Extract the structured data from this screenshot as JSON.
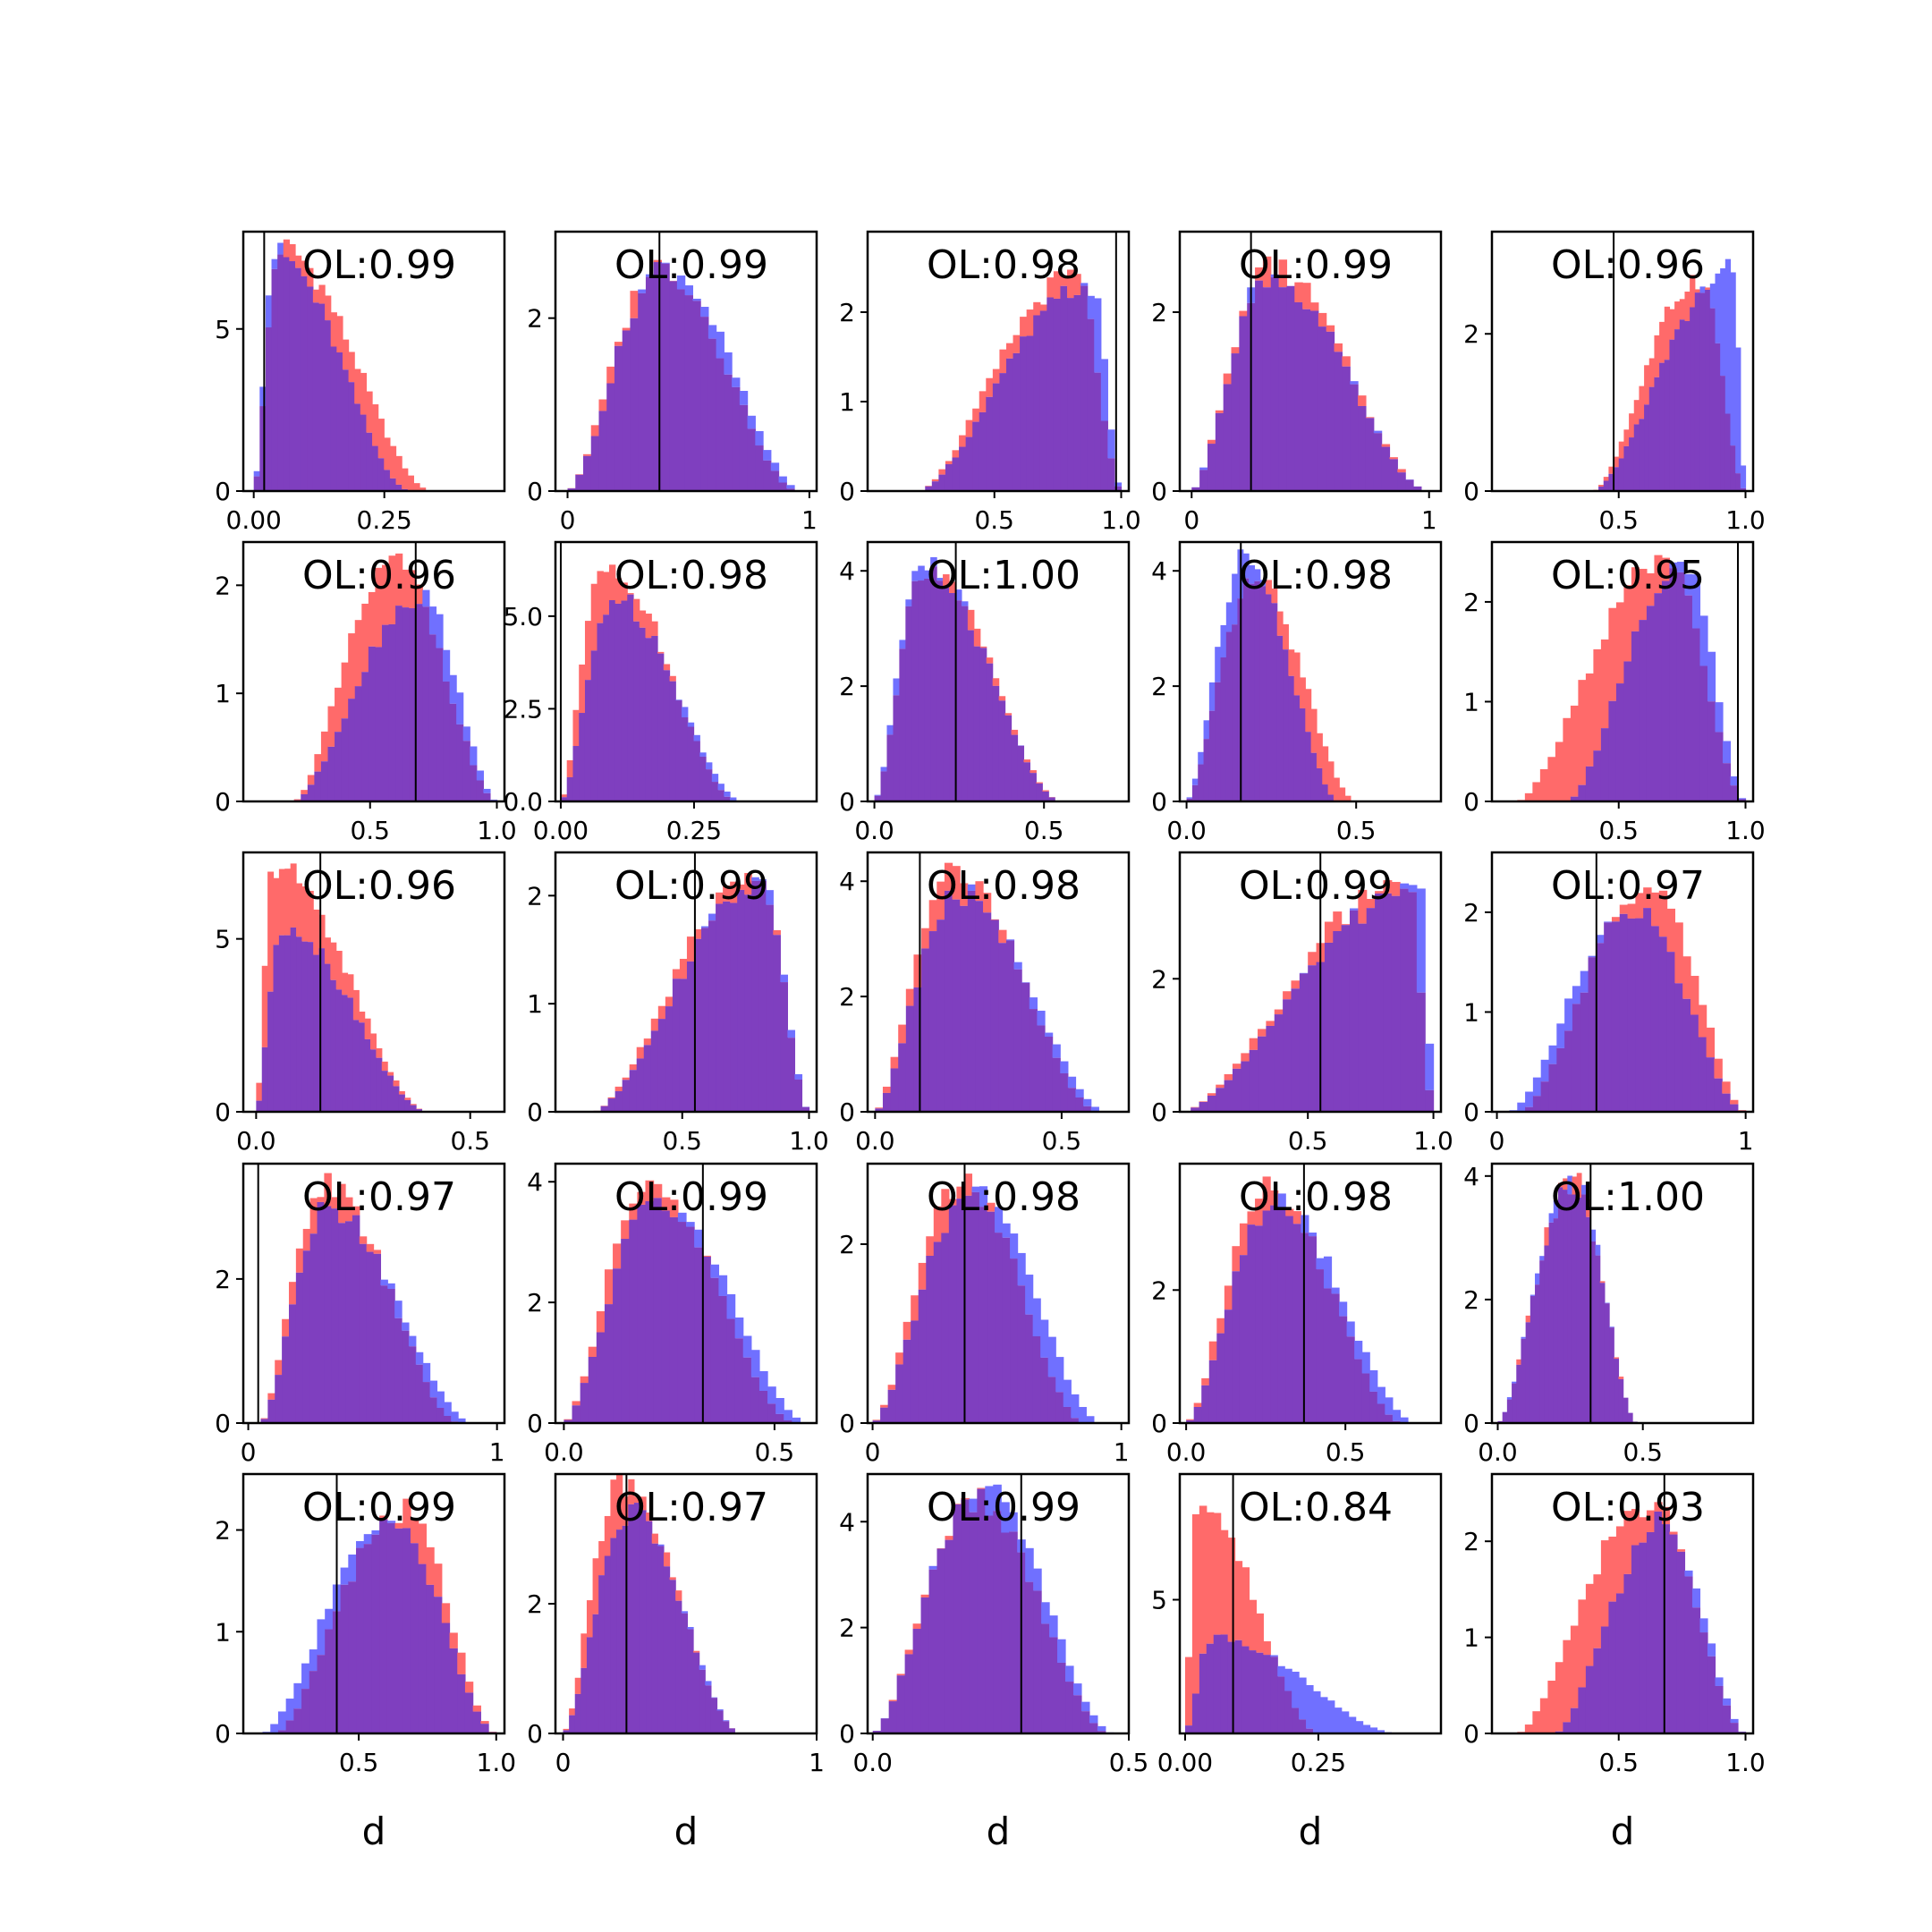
{
  "chart_data": [
    {
      "type": "bar",
      "ol": "OL:0.99",
      "xlim": [
        -0.02,
        0.48
      ],
      "ylim": [
        0,
        8
      ],
      "xticks": [
        0.0,
        0.25
      ],
      "xtick_labels": [
        "0.00",
        "0.25"
      ],
      "yticks": [
        0,
        5
      ],
      "ytick_labels": [
        "0",
        "5"
      ],
      "vline": 0.02,
      "xlabel": "",
      "series": [
        {
          "name": "red",
          "kind": "skew",
          "lo": 0.0,
          "hi": 0.34,
          "mode": 0.05,
          "peak": 7.5
        },
        {
          "name": "blue",
          "kind": "skew",
          "lo": 0.0,
          "hi": 0.3,
          "mode": 0.04,
          "peak": 7.3
        }
      ]
    },
    {
      "type": "bar",
      "ol": "OL:0.99",
      "xlim": [
        -0.05,
        1.03
      ],
      "ylim": [
        0,
        3.0
      ],
      "xticks": [
        0,
        1
      ],
      "xtick_labels": [
        "0",
        "1"
      ],
      "yticks": [
        0,
        2
      ],
      "ytick_labels": [
        "0",
        "2"
      ],
      "vline": 0.38,
      "xlabel": "",
      "series": [
        {
          "name": "red",
          "kind": "skew",
          "lo": 0.0,
          "hi": 0.95,
          "mode": 0.38,
          "peak": 2.6
        },
        {
          "name": "blue",
          "kind": "skew",
          "lo": 0.0,
          "hi": 0.97,
          "mode": 0.4,
          "peak": 2.6
        }
      ]
    },
    {
      "type": "bar",
      "ol": "OL:0.98",
      "xlim": [
        0.0,
        1.03
      ],
      "ylim": [
        0,
        2.9
      ],
      "xticks": [
        0.5,
        1.0
      ],
      "xtick_labels": [
        "0.5",
        "1.0"
      ],
      "yticks": [
        0,
        1,
        2
      ],
      "ytick_labels": [
        "0",
        "1",
        "2"
      ],
      "vline": 0.98,
      "xlabel": "",
      "series": [
        {
          "name": "red",
          "kind": "skew",
          "lo": 0.2,
          "hi": 1.0,
          "mode": 0.82,
          "peak": 2.4
        },
        {
          "name": "blue",
          "kind": "skew",
          "lo": 0.2,
          "hi": 1.0,
          "mode": 0.88,
          "peak": 2.3
        }
      ]
    },
    {
      "type": "bar",
      "ol": "OL:0.99",
      "xlim": [
        -0.05,
        1.05
      ],
      "ylim": [
        0,
        2.9
      ],
      "xticks": [
        0,
        1
      ],
      "xtick_labels": [
        "0",
        "1"
      ],
      "yticks": [
        0,
        2
      ],
      "ytick_labels": [
        "0",
        "2"
      ],
      "vline": 0.25,
      "xlabel": "",
      "series": [
        {
          "name": "red",
          "kind": "skew",
          "lo": 0.0,
          "hi": 1.0,
          "mode": 0.33,
          "peak": 2.5
        },
        {
          "name": "blue",
          "kind": "skew",
          "lo": 0.0,
          "hi": 1.0,
          "mode": 0.32,
          "peak": 2.4
        }
      ]
    },
    {
      "type": "bar",
      "ol": "OL:0.96",
      "xlim": [
        0.0,
        1.03
      ],
      "ylim": [
        0,
        3.3
      ],
      "xticks": [
        0.5,
        1.0
      ],
      "xtick_labels": [
        "0.5",
        "1.0"
      ],
      "yticks": [
        0,
        2
      ],
      "ytick_labels": [
        "0",
        "2"
      ],
      "vline": 0.48,
      "xlabel": "",
      "series": [
        {
          "name": "red",
          "kind": "skew",
          "lo": 0.4,
          "hi": 1.0,
          "mode": 0.82,
          "peak": 2.7
        },
        {
          "name": "blue",
          "kind": "skew",
          "lo": 0.4,
          "hi": 1.0,
          "mode": 0.95,
          "peak": 2.8
        }
      ]
    },
    {
      "type": "bar",
      "ol": "OL:0.96",
      "xlim": [
        0.0,
        1.03
      ],
      "ylim": [
        0,
        2.4
      ],
      "xticks": [
        0.5,
        1.0
      ],
      "xtick_labels": [
        "0.5",
        "1.0"
      ],
      "yticks": [
        0,
        1,
        2
      ],
      "ytick_labels": [
        "0",
        "1",
        "2"
      ],
      "vline": 0.68,
      "xlabel": "",
      "series": [
        {
          "name": "red",
          "kind": "skew",
          "lo": 0.2,
          "hi": 1.0,
          "mode": 0.6,
          "peak": 2.2
        },
        {
          "name": "blue",
          "kind": "skew",
          "lo": 0.2,
          "hi": 1.0,
          "mode": 0.7,
          "peak": 1.9
        }
      ]
    },
    {
      "type": "bar",
      "ol": "OL:0.98",
      "xlim": [
        -0.01,
        0.48
      ],
      "ylim": [
        0,
        7.0
      ],
      "xticks": [
        0.0,
        0.25
      ],
      "xtick_labels": [
        "0.00",
        "0.25"
      ],
      "yticks": [
        0,
        2.5,
        5.0
      ],
      "ytick_labels": [
        "0.0",
        "2.5",
        "5.0"
      ],
      "vline": 0.0,
      "xlabel": "",
      "series": [
        {
          "name": "red",
          "kind": "skew",
          "lo": 0.0,
          "hi": 0.33,
          "mode": 0.08,
          "peak": 6.5
        },
        {
          "name": "blue",
          "kind": "skew",
          "lo": 0.0,
          "hi": 0.34,
          "mode": 0.1,
          "peak": 5.5
        }
      ]
    },
    {
      "type": "bar",
      "ol": "OL:1.00",
      "xlim": [
        -0.02,
        0.75
      ],
      "ylim": [
        0,
        4.5
      ],
      "xticks": [
        0.0,
        0.5
      ],
      "xtick_labels": [
        "0.0",
        "0.5"
      ],
      "yticks": [
        0,
        2,
        4
      ],
      "ytick_labels": [
        "0",
        "2",
        "4"
      ],
      "vline": 0.24,
      "xlabel": "",
      "series": [
        {
          "name": "red",
          "kind": "skew",
          "lo": 0.0,
          "hi": 0.55,
          "mode": 0.15,
          "peak": 4.1
        },
        {
          "name": "blue",
          "kind": "skew",
          "lo": 0.0,
          "hi": 0.55,
          "mode": 0.14,
          "peak": 4.1
        }
      ]
    },
    {
      "type": "bar",
      "ol": "OL:0.98",
      "xlim": [
        -0.02,
        0.75
      ],
      "ylim": [
        0,
        4.5
      ],
      "xticks": [
        0.0,
        0.5
      ],
      "xtick_labels": [
        "0.0",
        "0.5"
      ],
      "yticks": [
        0,
        2,
        4
      ],
      "ytick_labels": [
        "0",
        "2",
        "4"
      ],
      "vline": 0.16,
      "xlabel": "",
      "series": [
        {
          "name": "red",
          "kind": "skew",
          "lo": 0.0,
          "hi": 0.5,
          "mode": 0.2,
          "peak": 3.8
        },
        {
          "name": "blue",
          "kind": "skew",
          "lo": 0.0,
          "hi": 0.45,
          "mode": 0.17,
          "peak": 4.2
        }
      ]
    },
    {
      "type": "bar",
      "ol": "OL:0.95",
      "xlim": [
        0.0,
        1.03
      ],
      "ylim": [
        0,
        2.6
      ],
      "xticks": [
        0.5,
        1.0
      ],
      "xtick_labels": [
        "0.5",
        "1.0"
      ],
      "yticks": [
        0,
        1,
        2
      ],
      "ytick_labels": [
        "0",
        "1",
        "2"
      ],
      "vline": 0.97,
      "xlabel": "",
      "series": [
        {
          "name": "red",
          "kind": "skew",
          "lo": 0.1,
          "hi": 1.0,
          "mode": 0.68,
          "peak": 2.4
        },
        {
          "name": "blue",
          "kind": "skew",
          "lo": 0.3,
          "hi": 1.0,
          "mode": 0.75,
          "peak": 2.4
        }
      ]
    },
    {
      "type": "bar",
      "ol": "OL:0.96",
      "xlim": [
        -0.03,
        0.58
      ],
      "ylim": [
        0,
        7.5
      ],
      "xticks": [
        0.0,
        0.5
      ],
      "xtick_labels": [
        "0.0",
        "0.5"
      ],
      "yticks": [
        0,
        5
      ],
      "ytick_labels": [
        "0",
        "5"
      ],
      "vline": 0.15,
      "xlabel": "",
      "series": [
        {
          "name": "red",
          "kind": "skew",
          "lo": 0.0,
          "hi": 0.4,
          "mode": 0.04,
          "peak": 7.1
        },
        {
          "name": "blue",
          "kind": "skew",
          "lo": 0.0,
          "hi": 0.4,
          "mode": 0.06,
          "peak": 5.4
        }
      ]
    },
    {
      "type": "bar",
      "ol": "OL:0.99",
      "xlim": [
        0.0,
        1.03
      ],
      "ylim": [
        0,
        2.4
      ],
      "xticks": [
        0.5,
        1.0
      ],
      "xtick_labels": [
        "0.5",
        "1.0"
      ],
      "yticks": [
        0,
        1,
        2
      ],
      "ytick_labels": [
        "0",
        "1",
        "2"
      ],
      "vline": 0.55,
      "xlabel": "",
      "series": [
        {
          "name": "red",
          "kind": "skew",
          "lo": 0.15,
          "hi": 1.0,
          "mode": 0.8,
          "peak": 2.2
        },
        {
          "name": "blue",
          "kind": "skew",
          "lo": 0.15,
          "hi": 1.0,
          "mode": 0.82,
          "peak": 2.1
        }
      ]
    },
    {
      "type": "bar",
      "ol": "OL:0.98",
      "xlim": [
        -0.02,
        0.68
      ],
      "ylim": [
        0,
        4.5
      ],
      "xticks": [
        0.0,
        0.5
      ],
      "xtick_labels": [
        "0.0",
        "0.5"
      ],
      "yticks": [
        0,
        2,
        4
      ],
      "ytick_labels": [
        "0",
        "2",
        "4"
      ],
      "vline": 0.12,
      "xlabel": "",
      "series": [
        {
          "name": "red",
          "kind": "skew",
          "lo": 0.0,
          "hi": 0.6,
          "mode": 0.2,
          "peak": 4.2
        },
        {
          "name": "blue",
          "kind": "skew",
          "lo": 0.0,
          "hi": 0.62,
          "mode": 0.22,
          "peak": 3.8
        }
      ]
    },
    {
      "type": "bar",
      "ol": "OL:0.99",
      "xlim": [
        -0.01,
        1.03
      ],
      "ylim": [
        0,
        3.9
      ],
      "xticks": [
        0.5,
        1.0
      ],
      "xtick_labels": [
        "0.5",
        "1.0"
      ],
      "yticks": [
        0,
        2
      ],
      "ytick_labels": [
        "0",
        "2"
      ],
      "vline": 0.55,
      "xlabel": "",
      "series": [
        {
          "name": "red",
          "kind": "skew",
          "lo": 0.0,
          "hi": 1.0,
          "mode": 0.9,
          "peak": 3.5
        },
        {
          "name": "blue",
          "kind": "skew",
          "lo": 0.0,
          "hi": 1.0,
          "mode": 0.95,
          "peak": 3.4
        }
      ]
    },
    {
      "type": "bar",
      "ol": "OL:0.97",
      "xlim": [
        -0.02,
        1.03
      ],
      "ylim": [
        0,
        2.6
      ],
      "xticks": [
        0,
        1
      ],
      "xtick_labels": [
        "0",
        "1"
      ],
      "yticks": [
        0,
        1,
        2
      ],
      "ytick_labels": [
        "0",
        "1",
        "2"
      ],
      "vline": 0.4,
      "xlabel": "",
      "series": [
        {
          "name": "red",
          "kind": "skew",
          "lo": 0.1,
          "hi": 1.0,
          "mode": 0.62,
          "peak": 2.3
        },
        {
          "name": "blue",
          "kind": "skew",
          "lo": 0.05,
          "hi": 1.0,
          "mode": 0.55,
          "peak": 2.0
        }
      ]
    },
    {
      "type": "bar",
      "ol": "OL:0.97",
      "xlim": [
        -0.02,
        1.03
      ],
      "ylim": [
        0,
        3.6
      ],
      "xticks": [
        0,
        1
      ],
      "xtick_labels": [
        "0",
        "1"
      ],
      "yticks": [
        0,
        2
      ],
      "ytick_labels": [
        "0",
        "2"
      ],
      "vline": 0.04,
      "xlabel": "",
      "series": [
        {
          "name": "red",
          "kind": "skew",
          "lo": 0.05,
          "hi": 0.85,
          "mode": 0.3,
          "peak": 3.3
        },
        {
          "name": "blue",
          "kind": "skew",
          "lo": 0.05,
          "hi": 0.9,
          "mode": 0.32,
          "peak": 3.0
        }
      ]
    },
    {
      "type": "bar",
      "ol": "OL:0.99",
      "xlim": [
        -0.02,
        0.6
      ],
      "ylim": [
        0,
        4.3
      ],
      "xticks": [
        0.0,
        0.5
      ],
      "xtick_labels": [
        "0.0",
        "0.5"
      ],
      "yticks": [
        0,
        2,
        4
      ],
      "ytick_labels": [
        "0",
        "2",
        "4"
      ],
      "vline": 0.33,
      "xlabel": "",
      "series": [
        {
          "name": "red",
          "kind": "skew",
          "lo": 0.0,
          "hi": 0.55,
          "mode": 0.2,
          "peak": 3.9
        },
        {
          "name": "blue",
          "kind": "skew",
          "lo": 0.0,
          "hi": 0.58,
          "mode": 0.22,
          "peak": 3.7
        }
      ]
    },
    {
      "type": "bar",
      "ol": "OL:0.98",
      "xlim": [
        -0.02,
        1.03
      ],
      "ylim": [
        0,
        2.9
      ],
      "xticks": [
        0,
        1
      ],
      "xtick_labels": [
        "0",
        "1"
      ],
      "yticks": [
        0,
        2
      ],
      "ytick_labels": [
        "0",
        "2"
      ],
      "vline": 0.37,
      "xlabel": "",
      "series": [
        {
          "name": "red",
          "kind": "skew",
          "lo": 0.0,
          "hi": 0.85,
          "mode": 0.36,
          "peak": 2.7
        },
        {
          "name": "blue",
          "kind": "skew",
          "lo": 0.0,
          "hi": 0.92,
          "mode": 0.4,
          "peak": 2.6
        }
      ]
    },
    {
      "type": "bar",
      "ol": "OL:0.98",
      "xlim": [
        -0.02,
        0.8
      ],
      "ylim": [
        0,
        3.9
      ],
      "xticks": [
        0.0,
        0.5
      ],
      "xtick_labels": [
        "0.0",
        "0.5"
      ],
      "yticks": [
        0,
        2
      ],
      "ytick_labels": [
        "0",
        "2"
      ],
      "vline": 0.37,
      "xlabel": "",
      "series": [
        {
          "name": "red",
          "kind": "skew",
          "lo": 0.0,
          "hi": 0.68,
          "mode": 0.25,
          "peak": 3.5
        },
        {
          "name": "blue",
          "kind": "skew",
          "lo": 0.0,
          "hi": 0.72,
          "mode": 0.28,
          "peak": 3.3
        }
      ]
    },
    {
      "type": "bar",
      "ol": "OL:1.00",
      "xlim": [
        -0.02,
        0.88
      ],
      "ylim": [
        0,
        4.2
      ],
      "xticks": [
        0.0,
        0.5
      ],
      "xtick_labels": [
        "0.0",
        "0.5"
      ],
      "yticks": [
        0,
        2,
        4
      ],
      "ytick_labels": [
        "0",
        "2",
        "4"
      ],
      "vline": 0.32,
      "xlabel": "",
      "series": [
        {
          "name": "red",
          "kind": "skew",
          "lo": 0.0,
          "hi": 0.48,
          "mode": 0.26,
          "peak": 3.9
        },
        {
          "name": "blue",
          "kind": "skew",
          "lo": 0.0,
          "hi": 0.48,
          "mode": 0.26,
          "peak": 3.9
        }
      ]
    },
    {
      "type": "bar",
      "ol": "OL:0.99",
      "xlim": [
        0.08,
        1.03
      ],
      "ylim": [
        0,
        2.55
      ],
      "xticks": [
        0.5,
        1.0
      ],
      "xtick_labels": [
        "0.5",
        "1.0"
      ],
      "yticks": [
        0,
        1,
        2
      ],
      "ytick_labels": [
        "0",
        "1",
        "2"
      ],
      "vline": 0.42,
      "xlabel": "d",
      "series": [
        {
          "name": "red",
          "kind": "skew",
          "lo": 0.2,
          "hi": 1.0,
          "mode": 0.66,
          "peak": 2.2
        },
        {
          "name": "blue",
          "kind": "skew",
          "lo": 0.15,
          "hi": 1.0,
          "mode": 0.62,
          "peak": 2.1
        }
      ]
    },
    {
      "type": "bar",
      "ol": "OL:0.97",
      "xlim": [
        -0.03,
        1.0
      ],
      "ylim": [
        0,
        4.0
      ],
      "xticks": [
        0,
        1
      ],
      "xtick_labels": [
        "0",
        "1"
      ],
      "yticks": [
        0,
        2
      ],
      "ytick_labels": [
        "0",
        "2"
      ],
      "vline": 0.25,
      "xlabel": "d",
      "series": [
        {
          "name": "red",
          "kind": "skew",
          "lo": 0.0,
          "hi": 0.7,
          "mode": 0.22,
          "peak": 3.8
        },
        {
          "name": "blue",
          "kind": "skew",
          "lo": 0.0,
          "hi": 0.7,
          "mode": 0.26,
          "peak": 3.4
        }
      ]
    },
    {
      "type": "bar",
      "ol": "OL:0.99",
      "xlim": [
        -0.01,
        0.5
      ],
      "ylim": [
        0,
        4.9
      ],
      "xticks": [
        0.0,
        0.5
      ],
      "xtick_labels": [
        "0.0",
        "0.5"
      ],
      "yticks": [
        0,
        2,
        4
      ],
      "ytick_labels": [
        "0",
        "2",
        "4"
      ],
      "vline": 0.29,
      "xlabel": "d",
      "series": [
        {
          "name": "red",
          "kind": "skew",
          "lo": 0.0,
          "hi": 0.46,
          "mode": 0.2,
          "peak": 4.4
        },
        {
          "name": "blue",
          "kind": "skew",
          "lo": 0.0,
          "hi": 0.47,
          "mode": 0.21,
          "peak": 4.6
        }
      ]
    },
    {
      "type": "bar",
      "ol": "OL:0.84",
      "xlim": [
        -0.01,
        0.48
      ],
      "ylim": [
        0,
        9.7
      ],
      "xticks": [
        0.0,
        0.25
      ],
      "xtick_labels": [
        "0.00",
        "0.25"
      ],
      "yticks": [
        5
      ],
      "ytick_labels": [
        "5"
      ],
      "vline": 0.09,
      "xlabel": "d",
      "series": [
        {
          "name": "red",
          "kind": "skew",
          "lo": 0.0,
          "hi": 0.25,
          "mode": 0.02,
          "peak": 8.7
        },
        {
          "name": "blue",
          "kind": "skew",
          "lo": 0.0,
          "hi": 0.4,
          "mode": 0.05,
          "peak": 3.6
        }
      ]
    },
    {
      "type": "bar",
      "ol": "OL:0.93",
      "xlim": [
        0.0,
        1.03
      ],
      "ylim": [
        0,
        2.7
      ],
      "xticks": [
        0.5,
        1.0
      ],
      "xtick_labels": [
        "0.5",
        "1.0"
      ],
      "yticks": [
        0,
        1,
        2
      ],
      "ytick_labels": [
        "0",
        "1",
        "2"
      ],
      "vline": 0.68,
      "xlabel": "d",
      "series": [
        {
          "name": "red",
          "kind": "skew",
          "lo": 0.1,
          "hi": 1.0,
          "mode": 0.62,
          "peak": 2.4
        },
        {
          "name": "blue",
          "kind": "skew",
          "lo": 0.25,
          "hi": 1.0,
          "mode": 0.68,
          "peak": 2.2
        }
      ]
    }
  ],
  "colors": {
    "red": "#ff6a6a",
    "blue": "#7070ff",
    "overlap": "#7f3fbf",
    "axis": "#000000",
    "vline": "#000000"
  }
}
